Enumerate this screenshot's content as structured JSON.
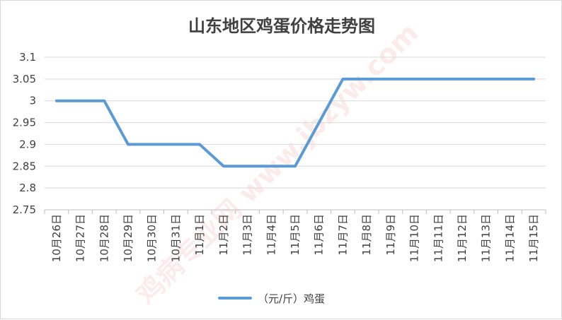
{
  "chart_data": {
    "type": "line",
    "title": "山东地区鸡蛋价格走势图",
    "categories": [
      "10月26日",
      "10月27日",
      "10月28日",
      "10月29日",
      "10月30日",
      "10月31日",
      "11月1日",
      "11月2日",
      "11月3日",
      "11月4日",
      "11月5日",
      "11月6日",
      "11月7日",
      "11月8日",
      "11月9日",
      "11月10日",
      "11月11日",
      "11月12日",
      "11月13日",
      "11月14日",
      "11月15日"
    ],
    "series": [
      {
        "name": "（元/斤）鸡蛋",
        "color": "#5b9bd5",
        "values": [
          3,
          3,
          3,
          2.9,
          2.9,
          2.9,
          2.9,
          2.85,
          2.85,
          2.85,
          2.85,
          2.95,
          3.05,
          3.05,
          3.05,
          3.05,
          3.05,
          3.05,
          3.05,
          3.05,
          3.05
        ]
      }
    ],
    "ylim": [
      2.75,
      3.1
    ],
    "yticks": [
      "2.75",
      "2.8",
      "2.85",
      "2.9",
      "2.95",
      "3",
      "3.05",
      "3.1"
    ],
    "xlabel": "",
    "ylabel": "",
    "grid": true,
    "legend_position": "bottom"
  },
  "watermark": {
    "text": "鸡病专业网 www.jbzyw.com",
    "color": "#e8888a"
  }
}
